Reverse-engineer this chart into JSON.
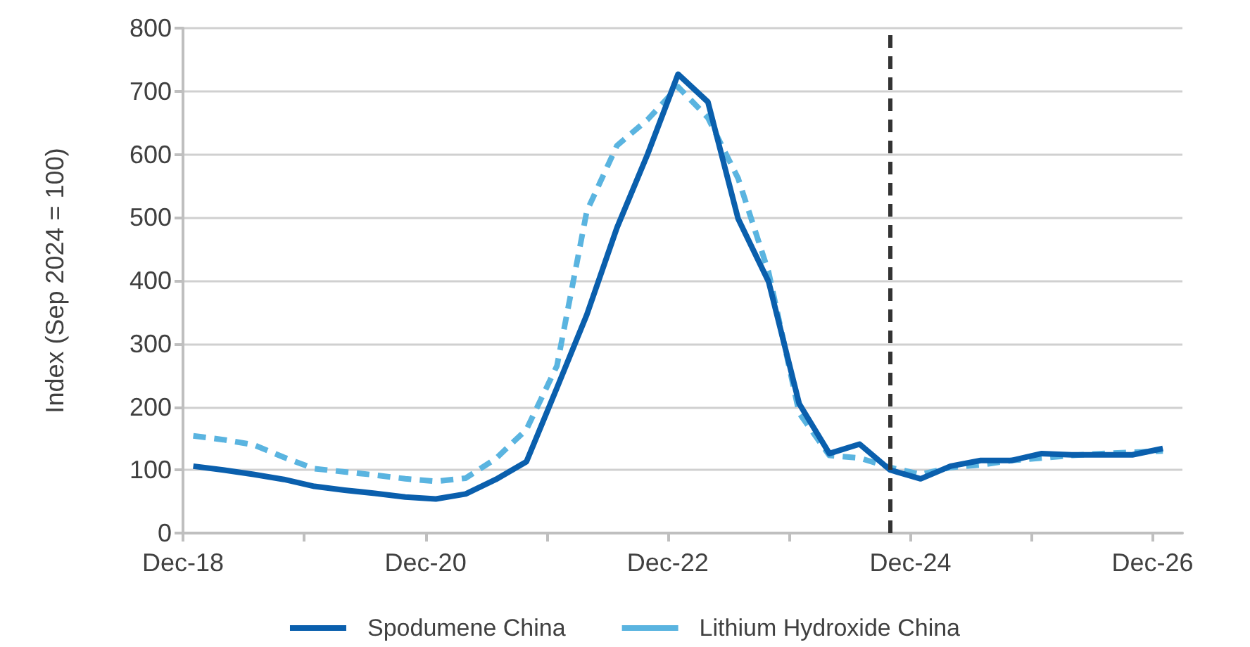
{
  "chart_data": {
    "type": "line",
    "ylabel": "Index (Sep 2024 = 100)",
    "x": [
      "2019-01",
      "2019-04",
      "2019-07",
      "2019-10",
      "2020-01",
      "2020-04",
      "2020-07",
      "2020-10",
      "2021-01",
      "2021-04",
      "2021-07",
      "2021-10",
      "2022-01",
      "2022-04",
      "2022-07",
      "2022-10",
      "2023-01",
      "2023-04",
      "2023-07",
      "2023-10",
      "2024-01",
      "2024-04",
      "2024-07",
      "2024-10",
      "2025-01",
      "2025-04",
      "2025-07",
      "2025-10",
      "2026-01",
      "2026-04",
      "2026-07",
      "2026-10",
      "2027-01"
    ],
    "series": [
      {
        "name": "Spodumene China",
        "color": "#0a5fad",
        "line_style": "solid",
        "values": [
          106,
          100,
          93,
          85,
          74,
          68,
          63,
          57,
          54,
          62,
          85,
          113,
          230,
          346,
          484,
          600,
          727,
          683,
          498,
          398,
          205,
          126,
          141,
          100,
          86,
          106,
          115,
          115,
          126,
          124,
          124,
          124,
          134
        ]
      },
      {
        "name": "Lithium Hydroxide China",
        "color": "#5ab4e0",
        "line_style": "dashed",
        "values": [
          154,
          148,
          140,
          120,
          102,
          97,
          92,
          86,
          82,
          87,
          118,
          164,
          265,
          510,
          614,
          655,
          707,
          658,
          562,
          413,
          190,
          123,
          119,
          104,
          93,
          104,
          108,
          115,
          119,
          123,
          126,
          128,
          130
        ]
      }
    ],
    "xlim": [
      "2018-12",
      "2027-03"
    ],
    "xticks": [
      {
        "value": "2018-12",
        "label": "Dec-18"
      },
      {
        "value": "2019-12",
        "label": null
      },
      {
        "value": "2020-12",
        "label": "Dec-20"
      },
      {
        "value": "2021-12",
        "label": null
      },
      {
        "value": "2022-12",
        "label": "Dec-22"
      },
      {
        "value": "2023-12",
        "label": null
      },
      {
        "value": "2024-12",
        "label": "Dec-24"
      },
      {
        "value": "2025-12",
        "label": null
      },
      {
        "value": "2026-12",
        "label": "Dec-26"
      }
    ],
    "ylim": [
      0,
      800
    ],
    "yticks": [
      0,
      100,
      200,
      300,
      400,
      500,
      600,
      700,
      800
    ],
    "ref_lines": [
      {
        "axis": "x",
        "value": "2024-10",
        "color": "#333333",
        "line_style": "dashed"
      }
    ],
    "grid": "y",
    "legend": "bottom",
    "marker": "none"
  }
}
